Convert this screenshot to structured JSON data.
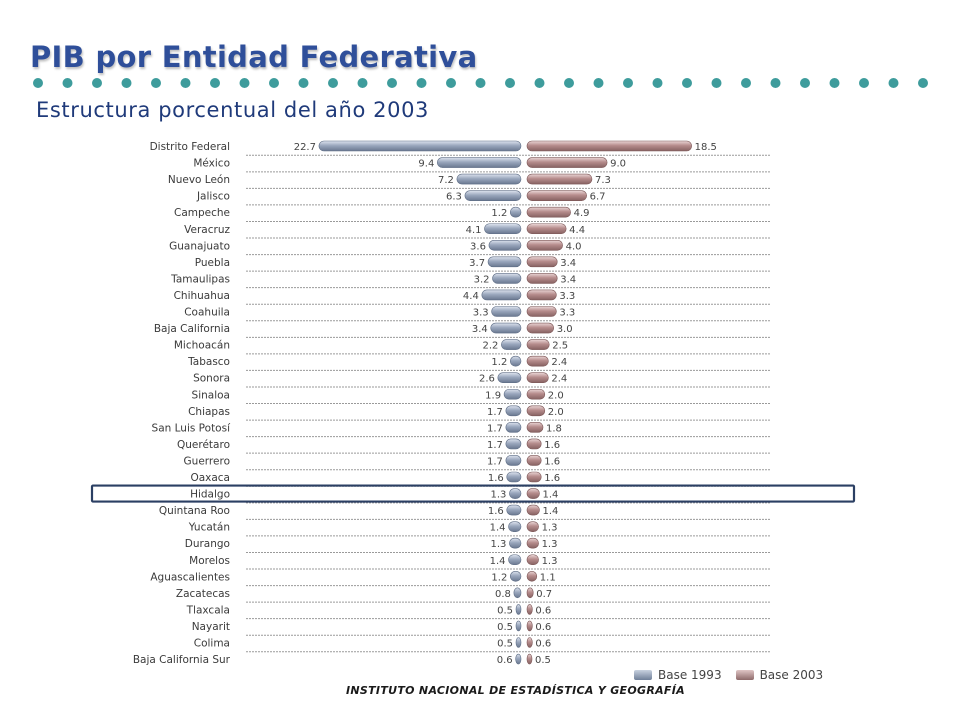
{
  "header": {
    "title": "PIB por Entidad Federativa",
    "subtitle": "Estructura porcentual del año 2003"
  },
  "footer": {
    "text": "INSTITUTO NACIONAL DE ESTADÍSTICA Y GEOGRAFÍA"
  },
  "colors": {
    "base_1993": "#8594ad",
    "base_2003": "#a87a7a",
    "title": "#2f4f9a",
    "dots": "#3e9c9c",
    "highlight_box": "#2b3f63"
  },
  "chart_data": {
    "type": "bar",
    "orientation": "horizontal-diverging",
    "title": "",
    "xlabel": "",
    "ylabel": "",
    "grid": false,
    "legend_position": "bottom-right",
    "highlighted_category": "Hidalgo",
    "categories": [
      "Distrito Federal",
      "México",
      "Nuevo León",
      "Jalisco",
      "Campeche",
      "Veracruz",
      "Guanajuato",
      "Puebla",
      "Tamaulipas",
      "Chihuahua",
      "Coahuila",
      "Baja California",
      "Michoacán",
      "Tabasco",
      "Sonora",
      "Sinaloa",
      "Chiapas",
      "San Luis Potosí",
      "Querétaro",
      "Guerrero",
      "Oaxaca",
      "Hidalgo",
      "Quintana Roo",
      "Yucatán",
      "Durango",
      "Morelos",
      "Aguascalientes",
      "Zacatecas",
      "Tlaxcala",
      "Nayarit",
      "Colima",
      "Baja California Sur"
    ],
    "series": [
      {
        "name": "Base 1993",
        "side": "left",
        "labels": [
          "22.7",
          "9.4",
          "7.2",
          "6.3",
          "1.2",
          "4.1",
          "3.6",
          "3.7",
          "3.2",
          "4.4",
          "3.3",
          "3.4",
          "2.2",
          "1.2",
          "2.6",
          "1.9",
          "1.7",
          "1.7",
          "1.7",
          "1.7",
          "1.6",
          "1.3",
          "1.6",
          "1.4",
          "1.3",
          "1.4",
          "1.2",
          "0.8",
          "0.5",
          "0.5",
          "0.5",
          "0.6"
        ],
        "values": [
          22.7,
          9.4,
          7.2,
          6.3,
          1.2,
          4.1,
          3.6,
          3.7,
          3.2,
          4.4,
          3.3,
          3.4,
          2.2,
          1.2,
          2.6,
          1.9,
          1.7,
          1.7,
          1.7,
          1.7,
          1.6,
          1.3,
          1.6,
          1.4,
          1.3,
          1.4,
          1.2,
          0.8,
          0.5,
          0.5,
          0.5,
          0.6
        ]
      },
      {
        "name": "Base 2003",
        "side": "right",
        "labels": [
          "18.5",
          "9.0",
          "7.3",
          "6.7",
          "4.9",
          "4.4",
          "4.0",
          "3.4",
          "3.4",
          "3.3",
          "3.3",
          "3.0",
          "2.5",
          "2.4",
          "2.4",
          "2.0",
          "2.0",
          "1.8",
          "1.6",
          "1.6",
          "1.6",
          "1.4",
          "1.4",
          "1.3",
          "1.3",
          "1.3",
          "1.1",
          "0.7",
          "0.6",
          "0.6",
          "0.6",
          "0.5"
        ],
        "values": [
          18.5,
          9.0,
          7.3,
          6.7,
          4.9,
          4.4,
          4.0,
          3.4,
          3.4,
          3.3,
          3.3,
          3.0,
          2.5,
          2.4,
          2.4,
          2.0,
          2.0,
          1.8,
          1.6,
          1.6,
          1.6,
          1.4,
          1.4,
          1.3,
          1.3,
          1.3,
          1.1,
          0.7,
          0.6,
          0.6,
          0.6,
          0.5
        ]
      }
    ]
  }
}
